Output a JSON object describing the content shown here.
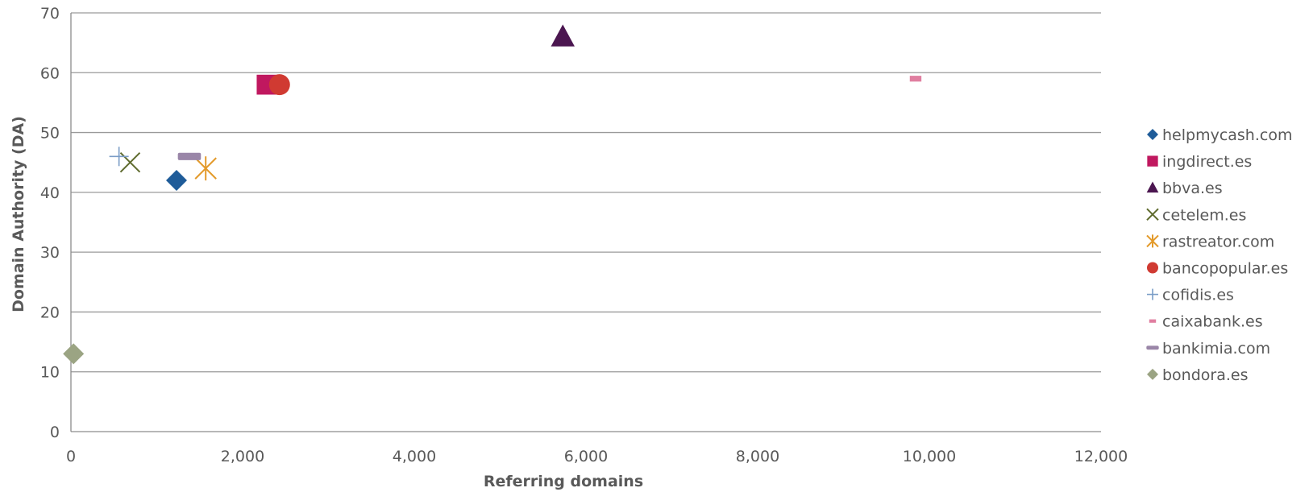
{
  "chart_data": {
    "type": "scatter",
    "title": "",
    "xlabel": "Referring domains",
    "ylabel": "Domain Authority (DA)",
    "xlim": [
      0,
      12000
    ],
    "ylim": [
      0,
      70
    ],
    "x_ticks": [
      "0",
      "2,000",
      "4,000",
      "6,000",
      "8,000",
      "10,000",
      "12,000"
    ],
    "y_ticks": [
      "0",
      "10",
      "20",
      "30",
      "40",
      "50",
      "60",
      "70"
    ],
    "grid": "horizontal",
    "legend_position": "right",
    "series": [
      {
        "name": "helpmycash.com",
        "marker": "diamond",
        "color": "#1F5C99",
        "x": 1230,
        "y": 42
      },
      {
        "name": "ingdirect.es",
        "marker": "square",
        "color": "#C0185F",
        "x": 2280,
        "y": 58
      },
      {
        "name": "bbva.es",
        "marker": "triangle",
        "color": "#4B1650",
        "x": 5730,
        "y": 66
      },
      {
        "name": "cetelem.es",
        "marker": "x",
        "color": "#5F6B2E",
        "x": 690,
        "y": 45
      },
      {
        "name": "rastreator.com",
        "marker": "star",
        "color": "#E39A2A",
        "x": 1570,
        "y": 44
      },
      {
        "name": "bancopopular.es",
        "marker": "circle",
        "color": "#D03A32",
        "x": 2430,
        "y": 58
      },
      {
        "name": "cofidis.es",
        "marker": "plus",
        "color": "#7A9CC6",
        "x": 560,
        "y": 46
      },
      {
        "name": "caixabank.es",
        "marker": "dash",
        "color": "#E07EA0",
        "x": 9840,
        "y": 59
      },
      {
        "name": "bankimia.com",
        "marker": "bar",
        "color": "#9A86A8",
        "x": 1380,
        "y": 46
      },
      {
        "name": "bondora.es",
        "marker": "diamond",
        "color": "#9BA483",
        "x": 30,
        "y": 13
      }
    ]
  }
}
